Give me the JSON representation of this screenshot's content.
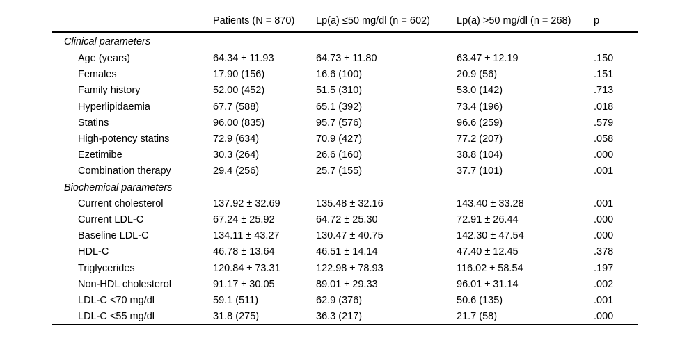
{
  "table": {
    "columns": [
      "",
      "Patients (N = 870)",
      "Lp(a) ≤50 mg/dl (n = 602)",
      "Lp(a) >50 mg/dl (n = 268)",
      "p"
    ],
    "sections": [
      {
        "title": "Clinical parameters",
        "rows": [
          {
            "label": "Age (years)",
            "values": [
              "64.34 ± 11.93",
              "64.73 ± 11.80",
              "63.47 ± 12.19",
              ".150"
            ]
          },
          {
            "label": "Females",
            "values": [
              "17.90 (156)",
              "16.6 (100)",
              "20.9 (56)",
              ".151"
            ]
          },
          {
            "label": "Family history",
            "values": [
              "52.00 (452)",
              "51.5 (310)",
              "53.0 (142)",
              ".713"
            ]
          },
          {
            "label": "Hyperlipidaemia",
            "values": [
              "67.7 (588)",
              "65.1 (392)",
              "73.4 (196)",
              ".018"
            ]
          },
          {
            "label": "Statins",
            "values": [
              "96.00 (835)",
              "95.7 (576)",
              "96.6 (259)",
              ".579"
            ]
          },
          {
            "label": "High-potency statins",
            "values": [
              "72.9 (634)",
              "70.9 (427)",
              "77.2 (207)",
              ".058"
            ]
          },
          {
            "label": "Ezetimibe",
            "values": [
              "30.3 (264)",
              "26.6 (160)",
              "38.8 (104)",
              ".000"
            ]
          },
          {
            "label": "Combination therapy",
            "values": [
              "29.4 (256)",
              "25.7 (155)",
              "37.7 (101)",
              ".001"
            ]
          }
        ]
      },
      {
        "title": "Biochemical parameters",
        "rows": [
          {
            "label": "Current cholesterol",
            "values": [
              "137.92 ± 32.69",
              "135.48 ± 32.16",
              "143.40 ± 33.28",
              ".001"
            ]
          },
          {
            "label": "Current LDL-C",
            "values": [
              "67.24 ± 25.92",
              "64.72 ± 25.30",
              "72.91 ± 26.44",
              ".000"
            ]
          },
          {
            "label": "Baseline LDL-C",
            "values": [
              "134.11 ± 43.27",
              "130.47 ± 40.75",
              "142.30 ± 47.54",
              ".000"
            ]
          },
          {
            "label": "HDL-C",
            "values": [
              "46.78 ± 13.64",
              "46.51 ± 14.14",
              "47.40 ± 12.45",
              ".378"
            ]
          },
          {
            "label": "Triglycerides",
            "values": [
              "120.84 ± 73.31",
              "122.98 ± 78.93",
              "116.02 ± 58.54",
              ".197"
            ]
          },
          {
            "label": "Non-HDL cholesterol",
            "values": [
              "91.17 ± 30.05",
              "89.01 ± 29.33",
              "96.01 ± 31.14",
              ".002"
            ]
          },
          {
            "label": "LDL-C <70 mg/dl",
            "values": [
              "59.1 (511)",
              "62.9 (376)",
              "50.6 (135)",
              ".001"
            ]
          },
          {
            "label": "LDL-C <55 mg/dl",
            "values": [
              "31.8 (275)",
              "36.3 (217)",
              "21.7 (58)",
              ".000"
            ]
          }
        ]
      }
    ]
  },
  "colors": {
    "text": "#000000",
    "rule": "#000000",
    "background": "#ffffff"
  }
}
